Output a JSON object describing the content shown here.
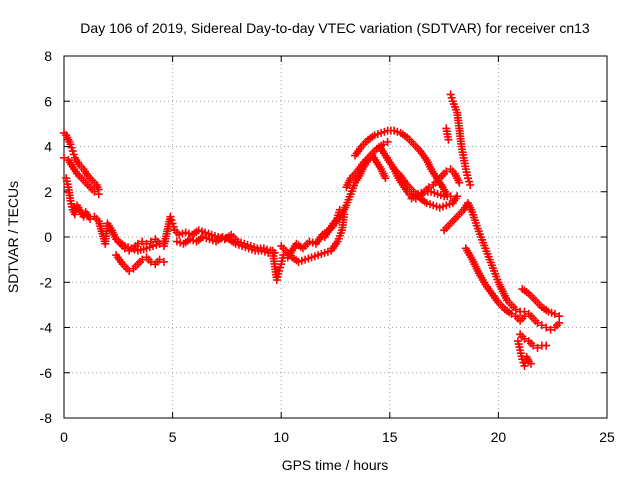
{
  "chart_data": {
    "type": "scatter",
    "title": "Day 106 of 2019, Sidereal Day-to-day VTEC variation (SDTVAR) for receiver cn13",
    "xlabel": "GPS time / hours",
    "ylabel": "SDTVAR / TECUs",
    "xlim": [
      0,
      25
    ],
    "ylim": [
      -8,
      8
    ],
    "xticks": [
      0,
      5,
      10,
      15,
      20,
      25
    ],
    "xtick_labels": [
      "0",
      "5",
      "10",
      "15",
      "20",
      "25"
    ],
    "yticks": [
      -8,
      -6,
      -4,
      -2,
      0,
      2,
      4,
      6,
      8
    ],
    "ytick_labels": [
      "-8",
      "-6",
      "-4",
      "-2",
      "0",
      "2",
      "4",
      "6",
      "8"
    ],
    "grid": true,
    "marker": "+",
    "series": [
      {
        "name": "SDTVAR",
        "color": "#ff0000",
        "x": [
          0.0,
          0.1,
          0.2,
          0.3,
          0.4,
          0.5,
          0.7,
          0.9,
          1.1,
          1.3,
          1.5,
          1.6,
          0.0,
          0.2,
          0.4,
          0.6,
          0.8,
          1.0,
          1.2,
          1.4,
          1.6,
          0.1,
          0.2,
          0.3,
          0.4,
          0.5,
          0.6,
          0.9,
          1.0,
          1.2,
          1.4,
          1.6,
          1.9,
          2.0,
          2.2,
          2.4,
          2.6,
          2.8,
          3.0,
          3.2,
          3.4,
          3.6,
          3.8,
          4.0,
          4.2,
          4.4,
          4.6,
          2.4,
          2.7,
          3.0,
          3.2,
          3.4,
          3.6,
          3.8,
          4.0,
          4.2,
          4.4,
          4.6,
          2.5,
          2.8,
          3.1,
          3.4,
          3.8,
          4.1,
          4.4,
          4.6,
          4.9,
          5.0,
          5.1,
          5.3,
          5.6,
          5.9,
          6.2,
          6.5,
          6.8,
          7.1,
          7.4,
          7.7,
          8.0,
          8.3,
          8.6,
          8.9,
          9.2,
          9.5,
          9.7,
          5.2,
          5.5,
          5.8,
          6.1,
          6.4,
          6.7,
          7.0,
          7.3,
          7.6,
          7.9,
          8.2,
          8.5,
          8.8,
          9.1,
          9.4,
          9.6,
          9.8,
          9.9,
          10.0,
          10.1,
          10.3,
          10.5,
          10.7,
          11.0,
          11.3,
          11.6,
          11.9,
          12.2,
          12.5,
          12.7,
          10.0,
          10.2,
          10.5,
          10.8,
          11.1,
          11.4,
          11.7,
          12.0,
          12.3,
          12.6,
          12.8,
          12.9,
          12.0,
          12.2,
          12.4,
          12.6,
          12.8,
          13.0,
          13.2,
          13.4,
          13.6,
          13.8,
          14.0,
          14.2,
          14.4,
          14.6,
          14.8,
          13.0,
          13.2,
          13.5,
          13.8,
          14.1,
          14.4,
          14.7,
          14.9,
          13.4,
          13.7,
          14.0,
          14.3,
          14.6,
          14.9,
          15.2,
          15.5,
          15.8,
          16.1,
          16.4,
          16.7,
          16.9,
          17.1,
          17.3,
          17.5,
          17.6,
          14.6,
          14.8,
          15.0,
          15.2,
          15.4,
          15.6,
          15.8,
          16.0,
          16.2,
          16.4,
          16.6,
          16.8,
          17.0,
          17.2,
          17.4,
          17.6,
          17.8,
          18.0,
          18.2,
          15.2,
          15.5,
          15.8,
          16.1,
          16.4,
          16.7,
          17.0,
          17.3,
          17.6,
          17.9,
          18.1,
          16.0,
          16.3,
          16.6,
          16.9,
          17.2,
          17.5,
          17.8,
          17.8,
          17.9,
          18.1,
          18.2,
          18.3,
          18.4,
          18.5,
          18.6,
          18.7,
          17.6,
          17.7,
          17.5,
          17.7,
          18.0,
          18.2,
          18.4,
          18.6,
          18.8,
          19.0,
          19.2,
          19.4,
          19.6,
          19.8,
          20.0,
          20.2,
          20.4,
          20.6,
          20.8,
          21.0,
          21.2,
          21.4,
          21.6,
          21.8,
          22.0,
          22.2,
          22.4,
          22.6,
          22.8,
          18.5,
          18.8,
          19.1,
          19.4,
          19.7,
          20.0,
          20.3,
          20.6,
          20.8,
          21.0,
          21.1,
          21.2,
          21.0,
          21.2,
          21.4,
          21.6,
          21.8,
          22.0,
          22.2,
          21.1,
          21.4,
          21.7,
          22.0,
          22.3,
          22.6,
          22.8,
          20.9,
          21.0,
          21.1,
          21.2,
          21.3,
          21.4,
          21.5
        ],
        "y": [
          4.6,
          4.5,
          4.3,
          4.1,
          3.8,
          3.5,
          3.2,
          3.0,
          2.7,
          2.5,
          2.3,
          2.1,
          3.5,
          3.4,
          3.1,
          2.8,
          2.6,
          2.4,
          2.2,
          2.0,
          1.9,
          2.6,
          2.2,
          1.6,
          1.2,
          1.0,
          1.4,
          0.9,
          1.1,
          0.8,
          0.9,
          0.7,
          -0.3,
          0.6,
          0.3,
          -0.1,
          -0.3,
          -0.5,
          -0.6,
          -0.5,
          -0.3,
          -0.2,
          -0.3,
          -0.2,
          -0.1,
          -0.3,
          -0.2,
          -0.8,
          -1.2,
          -1.5,
          -1.4,
          -1.2,
          -1.0,
          -0.9,
          -1.1,
          -1.2,
          -1.0,
          -1.1,
          -0.2,
          -0.4,
          -0.5,
          -0.6,
          -0.5,
          -0.4,
          -0.3,
          -0.4,
          0.9,
          0.6,
          0.3,
          0.1,
          0.2,
          0.1,
          0.3,
          0.2,
          0.1,
          0.0,
          -0.1,
          0.1,
          -0.2,
          -0.3,
          -0.4,
          -0.5,
          -0.5,
          -0.6,
          -0.7,
          -0.2,
          -0.3,
          -0.1,
          -0.2,
          0.0,
          -0.1,
          -0.2,
          0.0,
          -0.1,
          -0.3,
          -0.4,
          -0.5,
          -0.6,
          -0.6,
          -0.7,
          -0.6,
          -1.9,
          -1.5,
          -1.2,
          -0.8,
          -0.9,
          -0.6,
          -0.3,
          -0.5,
          -0.2,
          -0.3,
          0.1,
          0.3,
          0.6,
          1.2,
          -0.4,
          -0.6,
          -0.9,
          -1.1,
          -1.0,
          -0.9,
          -0.8,
          -0.7,
          -0.6,
          -0.2,
          0.3,
          1.0,
          0.0,
          0.3,
          0.6,
          0.8,
          1.0,
          1.4,
          1.9,
          2.4,
          2.7,
          3.1,
          3.4,
          3.6,
          3.3,
          3.0,
          2.6,
          2.2,
          2.6,
          2.9,
          3.3,
          3.6,
          3.9,
          4.1,
          4.2,
          3.6,
          4.0,
          4.3,
          4.5,
          4.6,
          4.7,
          4.7,
          4.6,
          4.4,
          4.1,
          3.8,
          3.4,
          3.0,
          2.7,
          2.4,
          2.1,
          1.9,
          3.9,
          3.6,
          3.3,
          3.0,
          2.6,
          2.3,
          2.0,
          1.8,
          1.7,
          1.8,
          2.0,
          2.2,
          2.3,
          2.5,
          2.7,
          2.9,
          3.0,
          2.8,
          2.4,
          3.0,
          2.7,
          2.3,
          2.0,
          1.7,
          1.5,
          1.4,
          1.3,
          1.4,
          1.5,
          1.8,
          1.7,
          1.9,
          2.0,
          2.0,
          1.9,
          1.8,
          1.8,
          6.3,
          6.0,
          5.5,
          4.8,
          4.0,
          3.5,
          3.0,
          2.6,
          2.3,
          4.8,
          4.3,
          0.3,
          0.5,
          0.8,
          1.0,
          1.2,
          1.5,
          1.1,
          0.5,
          0.0,
          -0.5,
          -1.0,
          -1.5,
          -2.0,
          -2.4,
          -2.8,
          -3.0,
          -3.2,
          -3.3,
          -3.3,
          -3.4,
          -3.6,
          -3.8,
          -3.9,
          -4.0,
          -4.1,
          -4.0,
          -3.8,
          -0.5,
          -1.0,
          -1.6,
          -2.1,
          -2.5,
          -2.9,
          -3.2,
          -3.4,
          -3.5,
          -3.7,
          -3.6,
          -3.5,
          -4.3,
          -4.5,
          -4.6,
          -4.8,
          -4.9,
          -4.8,
          -4.8,
          -2.3,
          -2.5,
          -2.8,
          -3.1,
          -3.3,
          -3.4,
          -3.5,
          -4.6,
          -5.0,
          -5.4,
          -5.7,
          -5.3,
          -5.5,
          -5.6
        ]
      }
    ]
  }
}
